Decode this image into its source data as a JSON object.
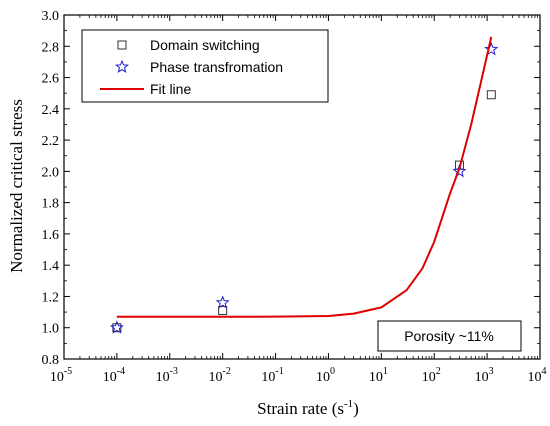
{
  "chart_data": {
    "type": "scatter",
    "x_scale": "log",
    "xlabel": "Strain rate (s",
    "xlabel_sup": "-1",
    "xlabel_suffix": ")",
    "ylabel": "Normalized critical stress",
    "xlim": [
      1e-05,
      10000
    ],
    "ylim": [
      0.8,
      3.0
    ],
    "x_ticks": [
      {
        "value": 1e-05,
        "base": "10",
        "exp": "-5"
      },
      {
        "value": 0.0001,
        "base": "10",
        "exp": "-4"
      },
      {
        "value": 0.001,
        "base": "10",
        "exp": "-3"
      },
      {
        "value": 0.01,
        "base": "10",
        "exp": "-2"
      },
      {
        "value": 0.1,
        "base": "10",
        "exp": "-1"
      },
      {
        "value": 1,
        "base": "10",
        "exp": "0"
      },
      {
        "value": 10,
        "base": "10",
        "exp": "1"
      },
      {
        "value": 100,
        "base": "10",
        "exp": "2"
      },
      {
        "value": 1000,
        "base": "10",
        "exp": "3"
      },
      {
        "value": 10000,
        "base": "10",
        "exp": "4"
      }
    ],
    "y_ticks": [
      "0.8",
      "1.0",
      "1.2",
      "1.4",
      "1.6",
      "1.8",
      "2.0",
      "2.2",
      "2.4",
      "2.6",
      "2.8",
      "3.0"
    ],
    "grid": false,
    "legend_position": "top-left",
    "series": [
      {
        "name": "Domain switching",
        "marker": "square",
        "color": "#333333",
        "points": [
          {
            "x": 0.0001,
            "y": 1.0
          },
          {
            "x": 0.01,
            "y": 1.11
          },
          {
            "x": 300,
            "y": 2.04
          },
          {
            "x": 1200,
            "y": 2.49
          }
        ]
      },
      {
        "name": "Phase transfromation",
        "marker": "star",
        "color": "#1f1fcc",
        "points": [
          {
            "x": 0.0001,
            "y": 1.0
          },
          {
            "x": 0.01,
            "y": 1.16
          },
          {
            "x": 300,
            "y": 2.0
          },
          {
            "x": 1200,
            "y": 2.78
          }
        ]
      },
      {
        "name": "Fit line",
        "marker": "line",
        "color": "#e00000",
        "points": [
          {
            "x": 0.0001,
            "y": 1.07
          },
          {
            "x": 0.001,
            "y": 1.07
          },
          {
            "x": 0.01,
            "y": 1.07
          },
          {
            "x": 0.1,
            "y": 1.071
          },
          {
            "x": 1,
            "y": 1.075
          },
          {
            "x": 3,
            "y": 1.09
          },
          {
            "x": 10,
            "y": 1.13
          },
          {
            "x": 30,
            "y": 1.24
          },
          {
            "x": 60,
            "y": 1.38
          },
          {
            "x": 100,
            "y": 1.55
          },
          {
            "x": 200,
            "y": 1.86
          },
          {
            "x": 300,
            "y": 2.02
          },
          {
            "x": 500,
            "y": 2.3
          },
          {
            "x": 800,
            "y": 2.6
          },
          {
            "x": 1200,
            "y": 2.86
          }
        ]
      }
    ],
    "annotation": "Porosity ~11%"
  }
}
